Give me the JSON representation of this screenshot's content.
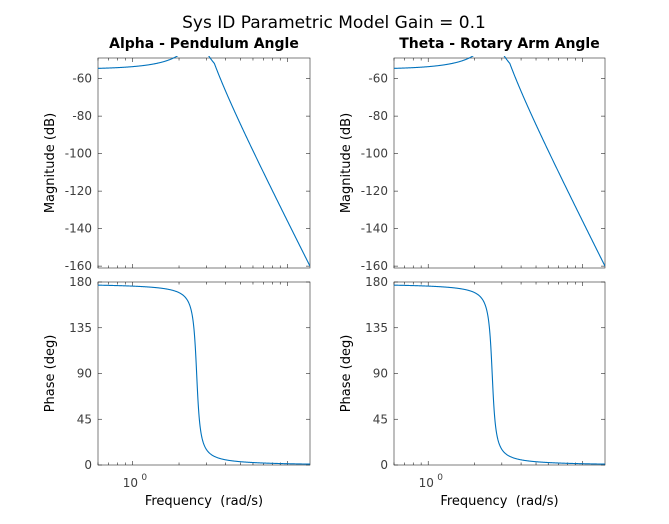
{
  "figure": {
    "title": "Sys ID Parametric Model Gain = 0.1",
    "colors": {
      "trace": "#0072bd",
      "axes": "#262626",
      "background": "#ffffff"
    }
  },
  "chart_data": [
    {
      "type": "line",
      "panel": "magnitude-left",
      "title": "Alpha - Pendulum Angle",
      "xlabel": "",
      "ylabel": "Magnitude (dB)",
      "xscale": "log",
      "xlim": [
        0.6,
        14.0
      ],
      "ylim": [
        -161,
        -49
      ],
      "yticks": [
        -60,
        -80,
        -100,
        -120,
        -140,
        -160
      ],
      "ytick_labels": [
        "-60",
        "-80",
        "-100",
        "-120",
        "-140",
        "-160"
      ],
      "series": [
        {
          "kind": "magnitude",
          "dc_gain_db": -55,
          "resonance_rad_s": 2.6,
          "zeta": 0.04,
          "end_db": -160
        }
      ]
    },
    {
      "type": "line",
      "panel": "phase-left",
      "title": "",
      "xlabel": "Frequency  (rad/s)",
      "ylabel": "Phase (deg)",
      "xscale": "log",
      "xlim": [
        0.6,
        14.0
      ],
      "ylim": [
        0,
        180
      ],
      "yticks": [
        180,
        135,
        90,
        45,
        0
      ],
      "ytick_labels": [
        "180",
        "135",
        "90",
        "45",
        "0"
      ],
      "xticks": [
        1
      ],
      "xtick_labels": [
        "10",
        "0"
      ],
      "series": [
        {
          "kind": "phase",
          "resonance_rad_s": 2.6,
          "zeta": 0.04,
          "start_deg": 178
        }
      ]
    },
    {
      "type": "line",
      "panel": "magnitude-right",
      "title": "Theta - Rotary Arm Angle",
      "xlabel": "",
      "ylabel": "Magnitude (dB)",
      "xscale": "log",
      "xlim": [
        0.6,
        14.0
      ],
      "ylim": [
        -161,
        -49
      ],
      "yticks": [
        -60,
        -80,
        -100,
        -120,
        -140,
        -160
      ],
      "ytick_labels": [
        "-60",
        "-80",
        "-100",
        "-120",
        "-140",
        "-160"
      ],
      "series": [
        {
          "kind": "magnitude",
          "dc_gain_db": -55,
          "resonance_rad_s": 2.6,
          "zeta": 0.04,
          "end_db": -160
        }
      ]
    },
    {
      "type": "line",
      "panel": "phase-right",
      "title": "",
      "xlabel": "Frequency  (rad/s)",
      "ylabel": "Phase (deg)",
      "xscale": "log",
      "xlim": [
        0.6,
        14.0
      ],
      "ylim": [
        0,
        180
      ],
      "yticks": [
        180,
        135,
        90,
        45,
        0
      ],
      "ytick_labels": [
        "180",
        "135",
        "90",
        "45",
        "0"
      ],
      "xticks": [
        1
      ],
      "xtick_labels": [
        "10",
        "0"
      ],
      "series": [
        {
          "kind": "phase",
          "resonance_rad_s": 2.6,
          "zeta": 0.04,
          "start_deg": 178
        }
      ]
    }
  ]
}
